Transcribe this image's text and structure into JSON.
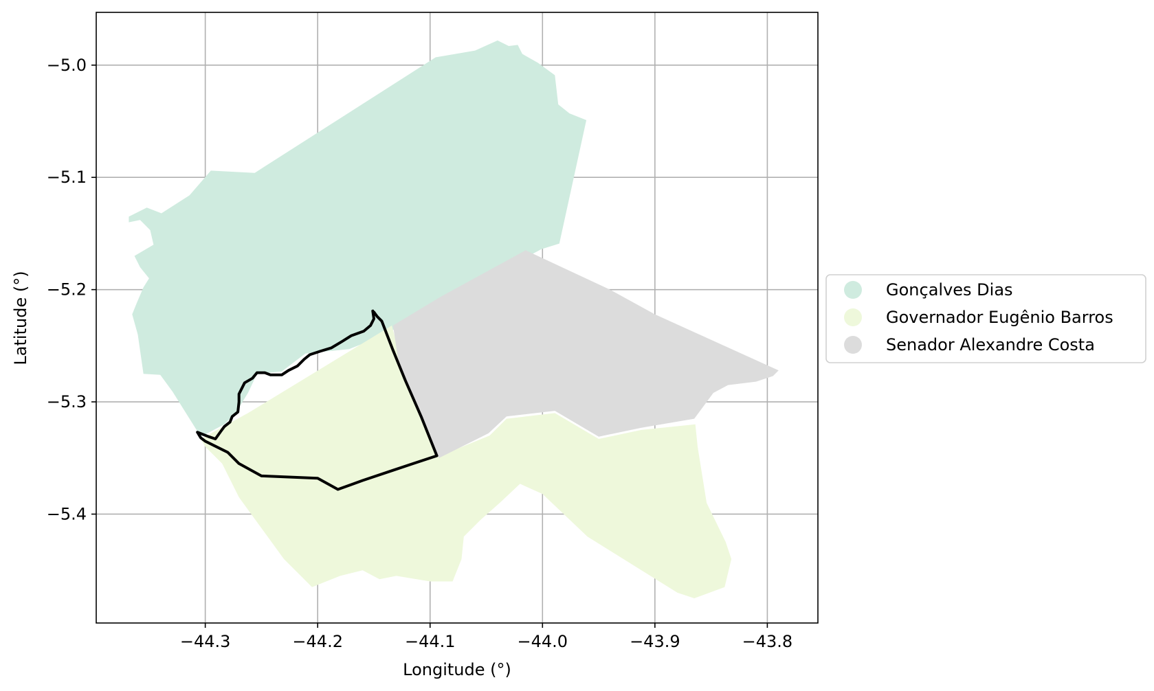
{
  "chart_data": {
    "type": "map",
    "xlabel": "Longitude (°)",
    "ylabel": "Latitude (°)",
    "xlim": [
      -44.397,
      -43.755
    ],
    "ylim": [
      -5.497,
      -4.953
    ],
    "grid": true,
    "legend_position": "right",
    "x_ticks": [
      {
        "value": -44.3,
        "label": "−44.3"
      },
      {
        "value": -44.2,
        "label": "−44.2"
      },
      {
        "value": -44.1,
        "label": "−44.1"
      },
      {
        "value": -44.0,
        "label": "−44.0"
      },
      {
        "value": -43.9,
        "label": "−43.9"
      },
      {
        "value": -43.8,
        "label": "−43.8"
      }
    ],
    "y_ticks": [
      {
        "value": -5.0,
        "label": "−5.0"
      },
      {
        "value": -5.1,
        "label": "−5.1"
      },
      {
        "value": -5.2,
        "label": "−5.2"
      },
      {
        "value": -5.3,
        "label": "−5.3"
      },
      {
        "value": -5.4,
        "label": "−5.4"
      }
    ],
    "regions": [
      {
        "name": "Gonçalves Dias",
        "color": "#cfebdf",
        "polygon": [
          [
            -44.339,
            -5.132
          ],
          [
            -44.314,
            -5.116
          ],
          [
            -44.295,
            -5.094
          ],
          [
            -44.256,
            -5.096
          ],
          [
            -44.095,
            -4.993
          ],
          [
            -44.06,
            -4.987
          ],
          [
            -44.04,
            -4.978
          ],
          [
            -44.03,
            -4.983
          ],
          [
            -44.022,
            -4.982
          ],
          [
            -44.018,
            -4.99
          ],
          [
            -44.004,
            -4.998
          ],
          [
            -43.989,
            -5.009
          ],
          [
            -43.986,
            -5.035
          ],
          [
            -43.976,
            -5.043
          ],
          [
            -43.961,
            -5.049
          ],
          [
            -43.985,
            -5.159
          ],
          [
            -44.001,
            -5.164
          ],
          [
            -44.016,
            -5.172
          ],
          [
            -44.133,
            -5.236
          ],
          [
            -44.147,
            -5.243
          ],
          [
            -44.172,
            -5.253
          ],
          [
            -44.211,
            -5.257
          ],
          [
            -44.232,
            -5.273
          ],
          [
            -44.254,
            -5.275
          ],
          [
            -44.262,
            -5.292
          ],
          [
            -44.273,
            -5.31
          ],
          [
            -44.283,
            -5.32
          ],
          [
            -44.298,
            -5.328
          ],
          [
            -44.304,
            -5.331
          ],
          [
            -44.329,
            -5.291
          ],
          [
            -44.34,
            -5.276
          ],
          [
            -44.355,
            -5.275
          ],
          [
            -44.357,
            -5.261
          ],
          [
            -44.36,
            -5.24
          ],
          [
            -44.365,
            -5.222
          ],
          [
            -44.361,
            -5.212
          ],
          [
            -44.355,
            -5.198
          ],
          [
            -44.35,
            -5.19
          ],
          [
            -44.358,
            -5.18
          ],
          [
            -44.363,
            -5.17
          ],
          [
            -44.346,
            -5.16
          ],
          [
            -44.349,
            -5.147
          ],
          [
            -44.358,
            -5.138
          ],
          [
            -44.368,
            -5.14
          ],
          [
            -44.368,
            -5.135
          ],
          [
            -44.352,
            -5.127
          ]
        ]
      },
      {
        "name": "Governador Eugênio Barros",
        "color": "#eef8db",
        "polygon": [
          [
            -44.304,
            -5.333
          ],
          [
            -44.262,
            -5.31
          ],
          [
            -44.134,
            -5.232
          ],
          [
            -44.125,
            -5.267
          ],
          [
            -44.091,
            -5.348
          ],
          [
            -44.047,
            -5.33
          ],
          [
            -44.032,
            -5.315
          ],
          [
            -43.989,
            -5.31
          ],
          [
            -43.95,
            -5.333
          ],
          [
            -43.912,
            -5.325
          ],
          [
            -43.864,
            -5.32
          ],
          [
            -43.862,
            -5.34
          ],
          [
            -43.854,
            -5.39
          ],
          [
            -43.837,
            -5.425
          ],
          [
            -43.832,
            -5.44
          ],
          [
            -43.838,
            -5.465
          ],
          [
            -43.865,
            -5.475
          ],
          [
            -43.88,
            -5.47
          ],
          [
            -43.96,
            -5.42
          ],
          [
            -44.0,
            -5.382
          ],
          [
            -44.02,
            -5.373
          ],
          [
            -44.038,
            -5.39
          ],
          [
            -44.055,
            -5.405
          ],
          [
            -44.07,
            -5.42
          ],
          [
            -44.072,
            -5.44
          ],
          [
            -44.08,
            -5.46
          ],
          [
            -44.1,
            -5.46
          ],
          [
            -44.13,
            -5.455
          ],
          [
            -44.145,
            -5.458
          ],
          [
            -44.16,
            -5.45
          ],
          [
            -44.18,
            -5.455
          ],
          [
            -44.205,
            -5.465
          ],
          [
            -44.23,
            -5.44
          ],
          [
            -44.27,
            -5.385
          ],
          [
            -44.285,
            -5.355
          ],
          [
            -44.3,
            -5.34
          ]
        ]
      },
      {
        "name": "Senador Alexandre Costa",
        "color": "#dcdcdc",
        "polygon": [
          [
            -44.015,
            -5.165
          ],
          [
            -43.94,
            -5.2
          ],
          [
            -43.9,
            -5.222
          ],
          [
            -43.79,
            -5.272
          ],
          [
            -43.795,
            -5.277
          ],
          [
            -43.81,
            -5.282
          ],
          [
            -43.835,
            -5.285
          ],
          [
            -43.848,
            -5.292
          ],
          [
            -43.865,
            -5.315
          ],
          [
            -43.912,
            -5.323
          ],
          [
            -43.95,
            -5.331
          ],
          [
            -43.989,
            -5.308
          ],
          [
            -44.032,
            -5.313
          ],
          [
            -44.048,
            -5.328
          ],
          [
            -44.092,
            -5.35
          ],
          [
            -44.103,
            -5.322
          ],
          [
            -44.128,
            -5.265
          ],
          [
            -44.133,
            -5.232
          ],
          [
            -44.09,
            -5.206
          ]
        ]
      }
    ],
    "outline": {
      "color": "#000000",
      "points": [
        [
          -44.15,
          -5.22
        ],
        [
          -44.147,
          -5.224
        ],
        [
          -44.143,
          -5.228
        ],
        [
          -44.133,
          -5.254
        ],
        [
          -44.122,
          -5.281
        ],
        [
          -44.108,
          -5.313
        ],
        [
          -44.094,
          -5.348
        ],
        [
          -44.115,
          -5.355
        ],
        [
          -44.133,
          -5.361
        ],
        [
          -44.16,
          -5.37
        ],
        [
          -44.182,
          -5.378
        ],
        [
          -44.2,
          -5.368
        ],
        [
          -44.25,
          -5.366
        ],
        [
          -44.27,
          -5.355
        ],
        [
          -44.28,
          -5.345
        ],
        [
          -44.29,
          -5.34
        ],
        [
          -44.3,
          -5.335
        ],
        [
          -44.304,
          -5.332
        ],
        [
          -44.307,
          -5.327
        ],
        [
          -44.297,
          -5.331
        ],
        [
          -44.291,
          -5.333
        ],
        [
          -44.286,
          -5.326
        ],
        [
          -44.283,
          -5.322
        ],
        [
          -44.278,
          -5.318
        ],
        [
          -44.276,
          -5.313
        ],
        [
          -44.271,
          -5.309
        ],
        [
          -44.27,
          -5.3
        ],
        [
          -44.27,
          -5.293
        ],
        [
          -44.265,
          -5.283
        ],
        [
          -44.258,
          -5.279
        ],
        [
          -44.254,
          -5.274
        ],
        [
          -44.247,
          -5.274
        ],
        [
          -44.242,
          -5.276
        ],
        [
          -44.232,
          -5.276
        ],
        [
          -44.226,
          -5.272
        ],
        [
          -44.218,
          -5.268
        ],
        [
          -44.212,
          -5.262
        ],
        [
          -44.207,
          -5.258
        ],
        [
          -44.198,
          -5.255
        ],
        [
          -44.188,
          -5.252
        ],
        [
          -44.178,
          -5.246
        ],
        [
          -44.17,
          -5.241
        ],
        [
          -44.159,
          -5.237
        ],
        [
          -44.153,
          -5.232
        ],
        [
          -44.15,
          -5.226
        ],
        [
          -44.151,
          -5.219
        ]
      ]
    }
  }
}
